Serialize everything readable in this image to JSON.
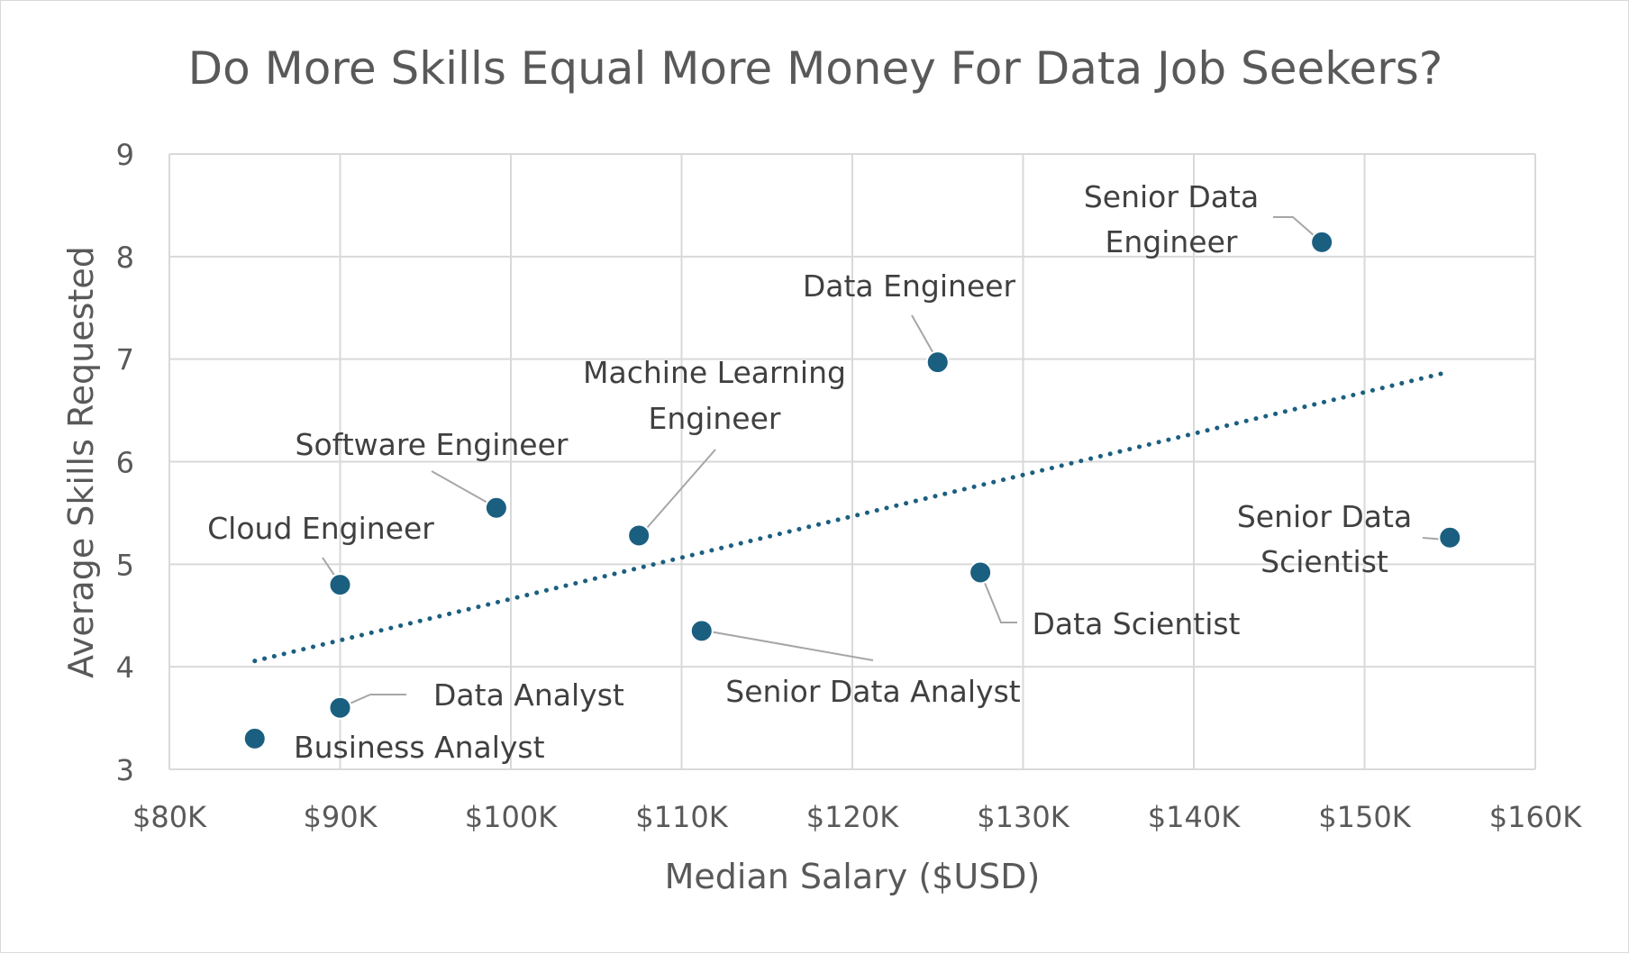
{
  "chart_data": {
    "type": "scatter",
    "title": "Do More Skills Equal More Money For Data Job Seekers?",
    "xlabel": "Median Salary ($USD)",
    "ylabel": "Average Skills Requested",
    "xlim": [
      80000,
      160000
    ],
    "ylim": [
      3,
      9
    ],
    "x_ticks": [
      "$80K",
      "$90K",
      "$100K",
      "$110K",
      "$120K",
      "$130K",
      "$140K",
      "$150K",
      "$160K"
    ],
    "y_ticks": [
      "3",
      "4",
      "5",
      "6",
      "7",
      "8",
      "9"
    ],
    "grid": true,
    "legend": "none",
    "point_color": "#1b5f80",
    "trendline": {
      "type": "linear",
      "style": "dotted",
      "color": "#1b5f80"
    },
    "points": [
      {
        "label": "Business Analyst",
        "x": 85000,
        "y": 3.3
      },
      {
        "label": "Data Analyst",
        "x": 90000,
        "y": 3.6
      },
      {
        "label": "Cloud Engineer",
        "x": 90000,
        "y": 4.8
      },
      {
        "label": "Software Engineer",
        "x": 99150,
        "y": 5.55
      },
      {
        "label": "Machine Learning Engineer",
        "x": 107500,
        "y": 5.28
      },
      {
        "label": "Senior Data Analyst",
        "x": 111175,
        "y": 4.35
      },
      {
        "label": "Data Engineer",
        "x": 125000,
        "y": 6.97
      },
      {
        "label": "Data Scientist",
        "x": 127500,
        "y": 4.92
      },
      {
        "label": "Senior Data Engineer",
        "x": 147500,
        "y": 8.14
      },
      {
        "label": "Senior Data Scientist",
        "x": 155000,
        "y": 5.26
      }
    ]
  }
}
